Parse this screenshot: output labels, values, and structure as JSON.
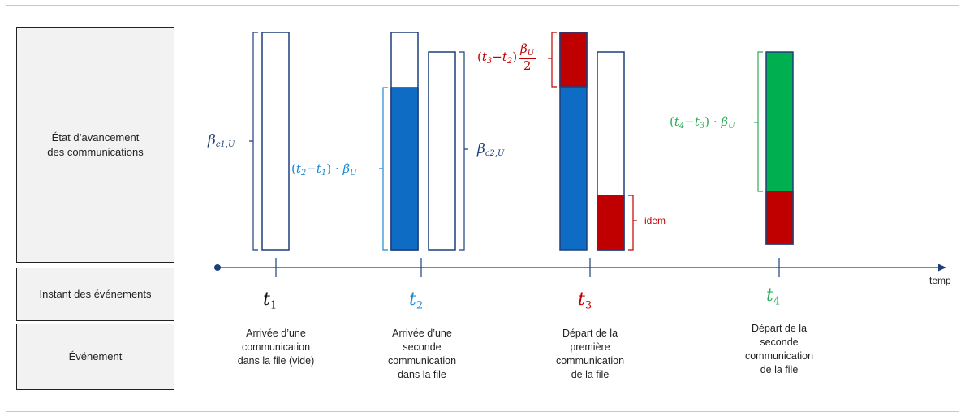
{
  "rows": {
    "progress": "État d’avancement\ndes communications",
    "instants": "Instant des événements",
    "events": "Événement"
  },
  "axis": {
    "label": "temp"
  },
  "instants": [
    {
      "symbol": "t",
      "index": "1",
      "color": "#111111",
      "event": "Arrivée d’une\ncommunication\ndans la file (vide)"
    },
    {
      "symbol": "t",
      "index": "2",
      "color": "#1b8ad3",
      "event": "Arrivée d’une\nseconde\ncommunication\ndans la file"
    },
    {
      "symbol": "t",
      "index": "3",
      "color": "#c00000",
      "event": "Départ de la\npremière\ncommunication\nde la file"
    },
    {
      "symbol": "t",
      "index": "4",
      "color": "#2eab58",
      "event": "Départ de la\nseconde\ncommunication\nde la file"
    }
  ],
  "annotations": {
    "beta_c1": {
      "base": "β",
      "sub": "c1,U",
      "color": "#1f3f7a"
    },
    "beta_c2": {
      "base": "β",
      "sub": "c2,U",
      "color": "#1f3f7a"
    },
    "elapsed_21": {
      "t_a": "t",
      "a": "2",
      "t_b": "t",
      "b": "1",
      "dot": "·",
      "beta": "β",
      "beta_sub": "U",
      "color": "#1b8ad3"
    },
    "elapsed_32": {
      "t_a": "t",
      "a": "3",
      "t_b": "t",
      "b": "2",
      "num": "β",
      "num_sub": "U",
      "den": "2",
      "color": "#c00000"
    },
    "elapsed_43": {
      "t_a": "t",
      "a": "4",
      "t_b": "t",
      "b": "3",
      "dot": "·",
      "beta": "β",
      "beta_sub": "U",
      "color": "#2eab58"
    },
    "idem": "idem"
  },
  "colors": {
    "outline": "#1f3f7a",
    "fill_blue": "#0f6cc4",
    "fill_red": "#c00000",
    "fill_green": "#00b050",
    "axis": "#1f3f7a"
  }
}
